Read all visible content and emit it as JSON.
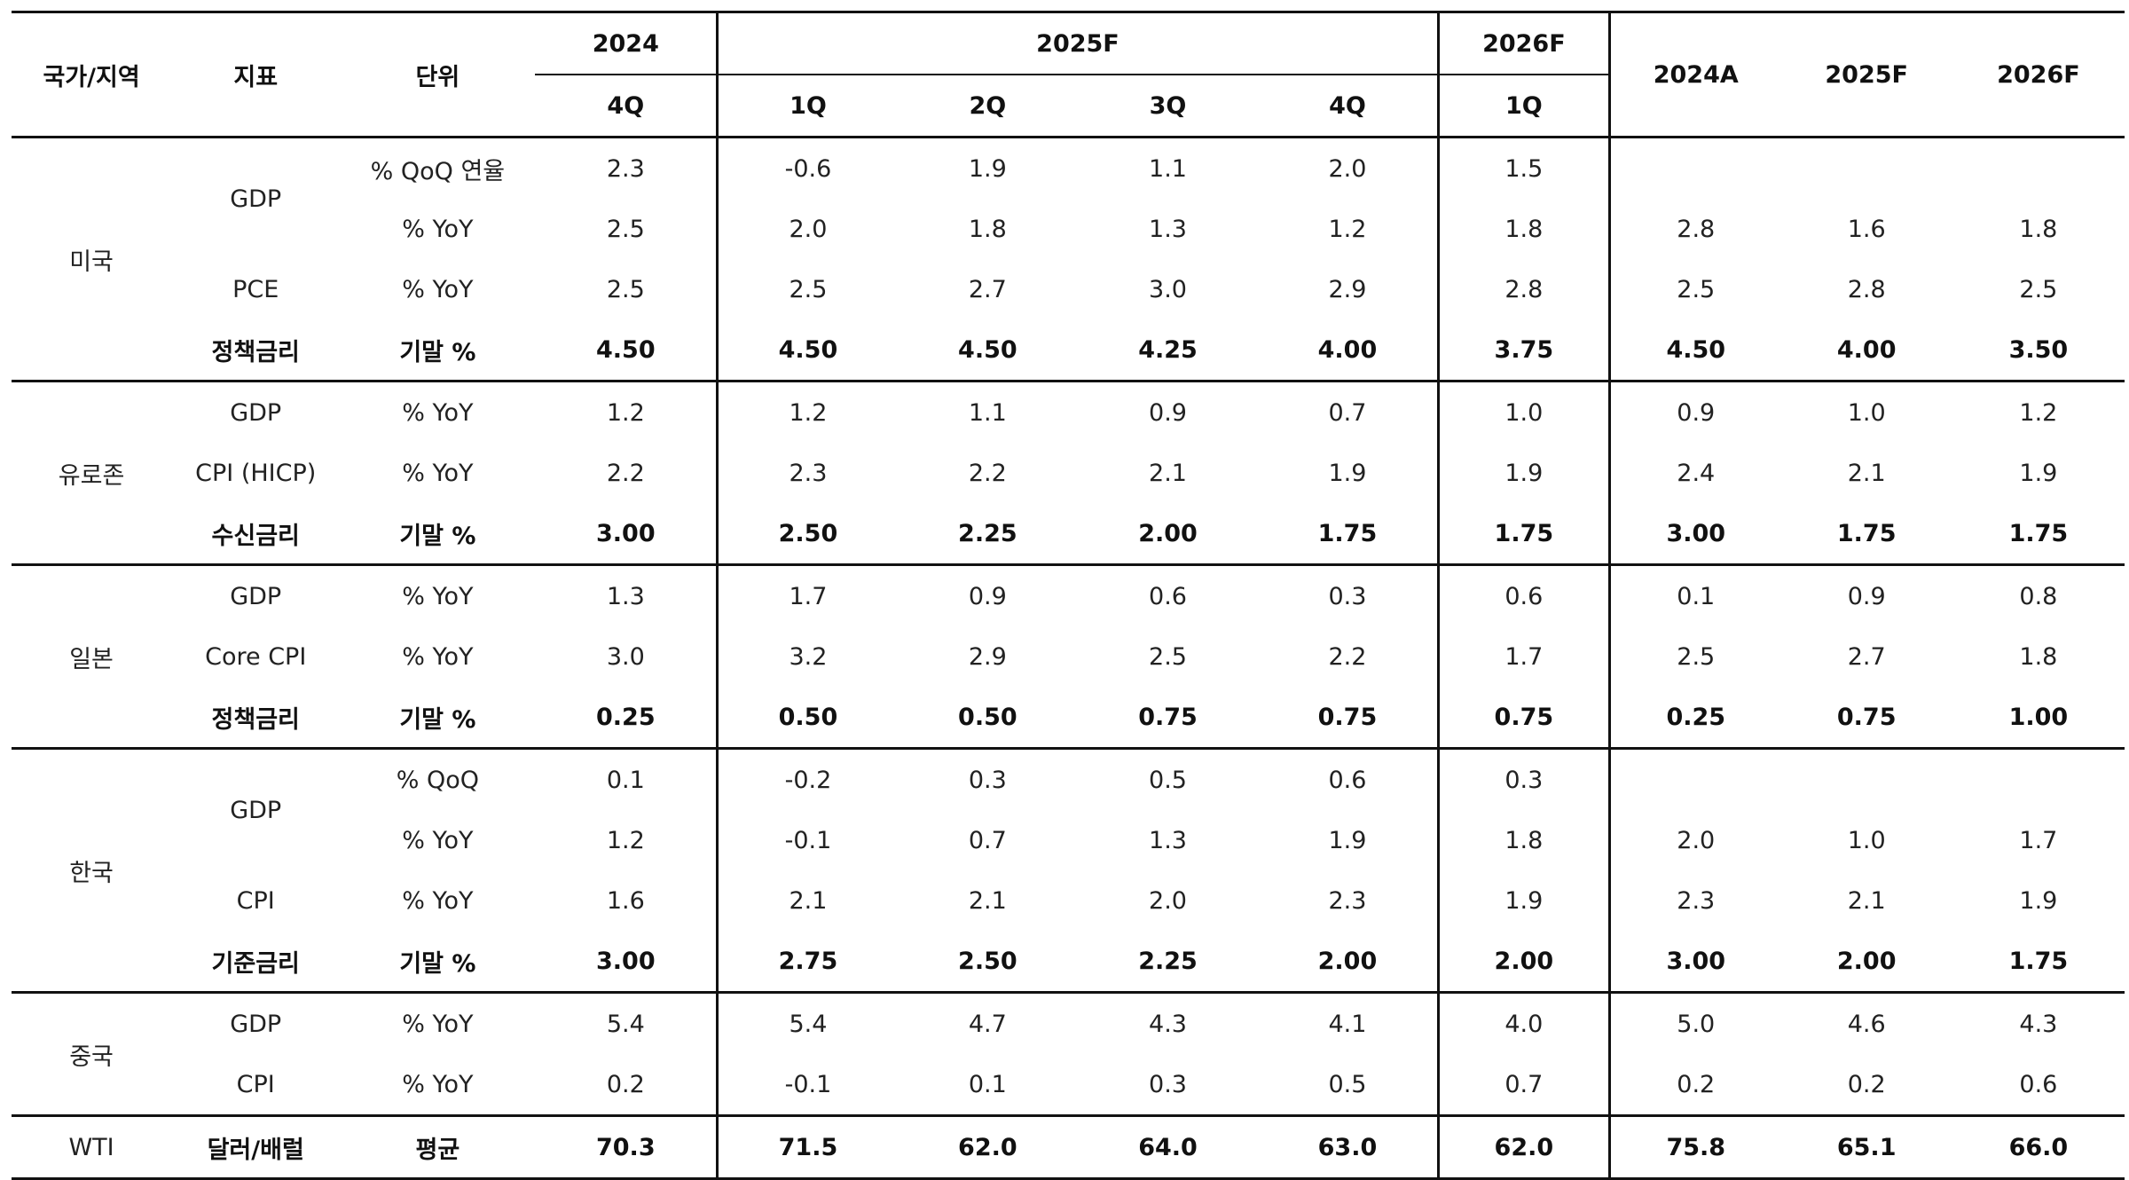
{
  "header": {
    "country": "국가/지역",
    "indicator": "지표",
    "unit": "단위",
    "y2024": "2024",
    "y2025f": "2025F",
    "y2026f": "2026F",
    "q_2024": "4Q",
    "q_2025": [
      "1Q",
      "2Q",
      "3Q",
      "4Q"
    ],
    "q_2026": "1Q",
    "annual": [
      "2024A",
      "2025F",
      "2026F"
    ]
  },
  "groups": {
    "us": {
      "label": "미국",
      "rows": [
        {
          "indicator": "GDP",
          "unit": "% QoQ 연율",
          "values": [
            "2.3",
            "-0.6",
            "1.9",
            "1.1",
            "2.0",
            "1.5",
            "",
            "",
            ""
          ]
        },
        {
          "indicator": "",
          "unit": "% YoY",
          "values": [
            "2.5",
            "2.0",
            "1.8",
            "1.3",
            "1.2",
            "1.8",
            "2.8",
            "1.6",
            "1.8"
          ]
        },
        {
          "indicator": "PCE",
          "unit": "% YoY",
          "values": [
            "2.5",
            "2.5",
            "2.7",
            "3.0",
            "2.9",
            "2.8",
            "2.5",
            "2.8",
            "2.5"
          ]
        },
        {
          "indicator": "정책금리",
          "unit": "기말 %",
          "values": [
            "4.50",
            "4.50",
            "4.50",
            "4.25",
            "4.00",
            "3.75",
            "4.50",
            "4.00",
            "3.50"
          ]
        }
      ]
    },
    "eurozone": {
      "label": "유로존",
      "rows": [
        {
          "indicator": "GDP",
          "unit": "% YoY",
          "values": [
            "1.2",
            "1.2",
            "1.1",
            "0.9",
            "0.7",
            "1.0",
            "0.9",
            "1.0",
            "1.2"
          ]
        },
        {
          "indicator": "CPI (HICP)",
          "unit": "% YoY",
          "values": [
            "2.2",
            "2.3",
            "2.2",
            "2.1",
            "1.9",
            "1.9",
            "2.4",
            "2.1",
            "1.9"
          ]
        },
        {
          "indicator": "수신금리",
          "unit": "기말 %",
          "values": [
            "3.00",
            "2.50",
            "2.25",
            "2.00",
            "1.75",
            "1.75",
            "3.00",
            "1.75",
            "1.75"
          ]
        }
      ]
    },
    "japan": {
      "label": "일본",
      "rows": [
        {
          "indicator": "GDP",
          "unit": "% YoY",
          "values": [
            "1.3",
            "1.7",
            "0.9",
            "0.6",
            "0.3",
            "0.6",
            "0.1",
            "0.9",
            "0.8"
          ]
        },
        {
          "indicator": "Core CPI",
          "unit": "% YoY",
          "values": [
            "3.0",
            "3.2",
            "2.9",
            "2.5",
            "2.2",
            "1.7",
            "2.5",
            "2.7",
            "1.8"
          ]
        },
        {
          "indicator": "정책금리",
          "unit": "기말 %",
          "values": [
            "0.25",
            "0.50",
            "0.50",
            "0.75",
            "0.75",
            "0.75",
            "0.25",
            "0.75",
            "1.00"
          ]
        }
      ]
    },
    "korea": {
      "label": "한국",
      "rows": [
        {
          "indicator": "GDP",
          "unit": "% QoQ",
          "values": [
            "0.1",
            "-0.2",
            "0.3",
            "0.5",
            "0.6",
            "0.3",
            "",
            "",
            ""
          ]
        },
        {
          "indicator": "",
          "unit": "% YoY",
          "values": [
            "1.2",
            "-0.1",
            "0.7",
            "1.3",
            "1.9",
            "1.8",
            "2.0",
            "1.0",
            "1.7"
          ]
        },
        {
          "indicator": "CPI",
          "unit": "% YoY",
          "values": [
            "1.6",
            "2.1",
            "2.1",
            "2.0",
            "2.3",
            "1.9",
            "2.3",
            "2.1",
            "1.9"
          ]
        },
        {
          "indicator": "기준금리",
          "unit": "기말 %",
          "values": [
            "3.00",
            "2.75",
            "2.50",
            "2.25",
            "2.00",
            "2.00",
            "3.00",
            "2.00",
            "1.75"
          ]
        }
      ]
    },
    "china": {
      "label": "중국",
      "rows": [
        {
          "indicator": "GDP",
          "unit": "% YoY",
          "values": [
            "5.4",
            "5.4",
            "4.7",
            "4.3",
            "4.1",
            "4.0",
            "5.0",
            "4.6",
            "4.3"
          ]
        },
        {
          "indicator": "CPI",
          "unit": "% YoY",
          "values": [
            "0.2",
            "-0.1",
            "0.1",
            "0.3",
            "0.5",
            "0.7",
            "0.2",
            "0.2",
            "0.6"
          ]
        }
      ]
    },
    "wti": {
      "label": "WTI",
      "rows": [
        {
          "indicator": "달러/배럴",
          "unit": "평균",
          "values": [
            "70.3",
            "71.5",
            "62.0",
            "64.0",
            "63.0",
            "62.0",
            "75.8",
            "65.1",
            "66.0"
          ]
        }
      ]
    }
  }
}
